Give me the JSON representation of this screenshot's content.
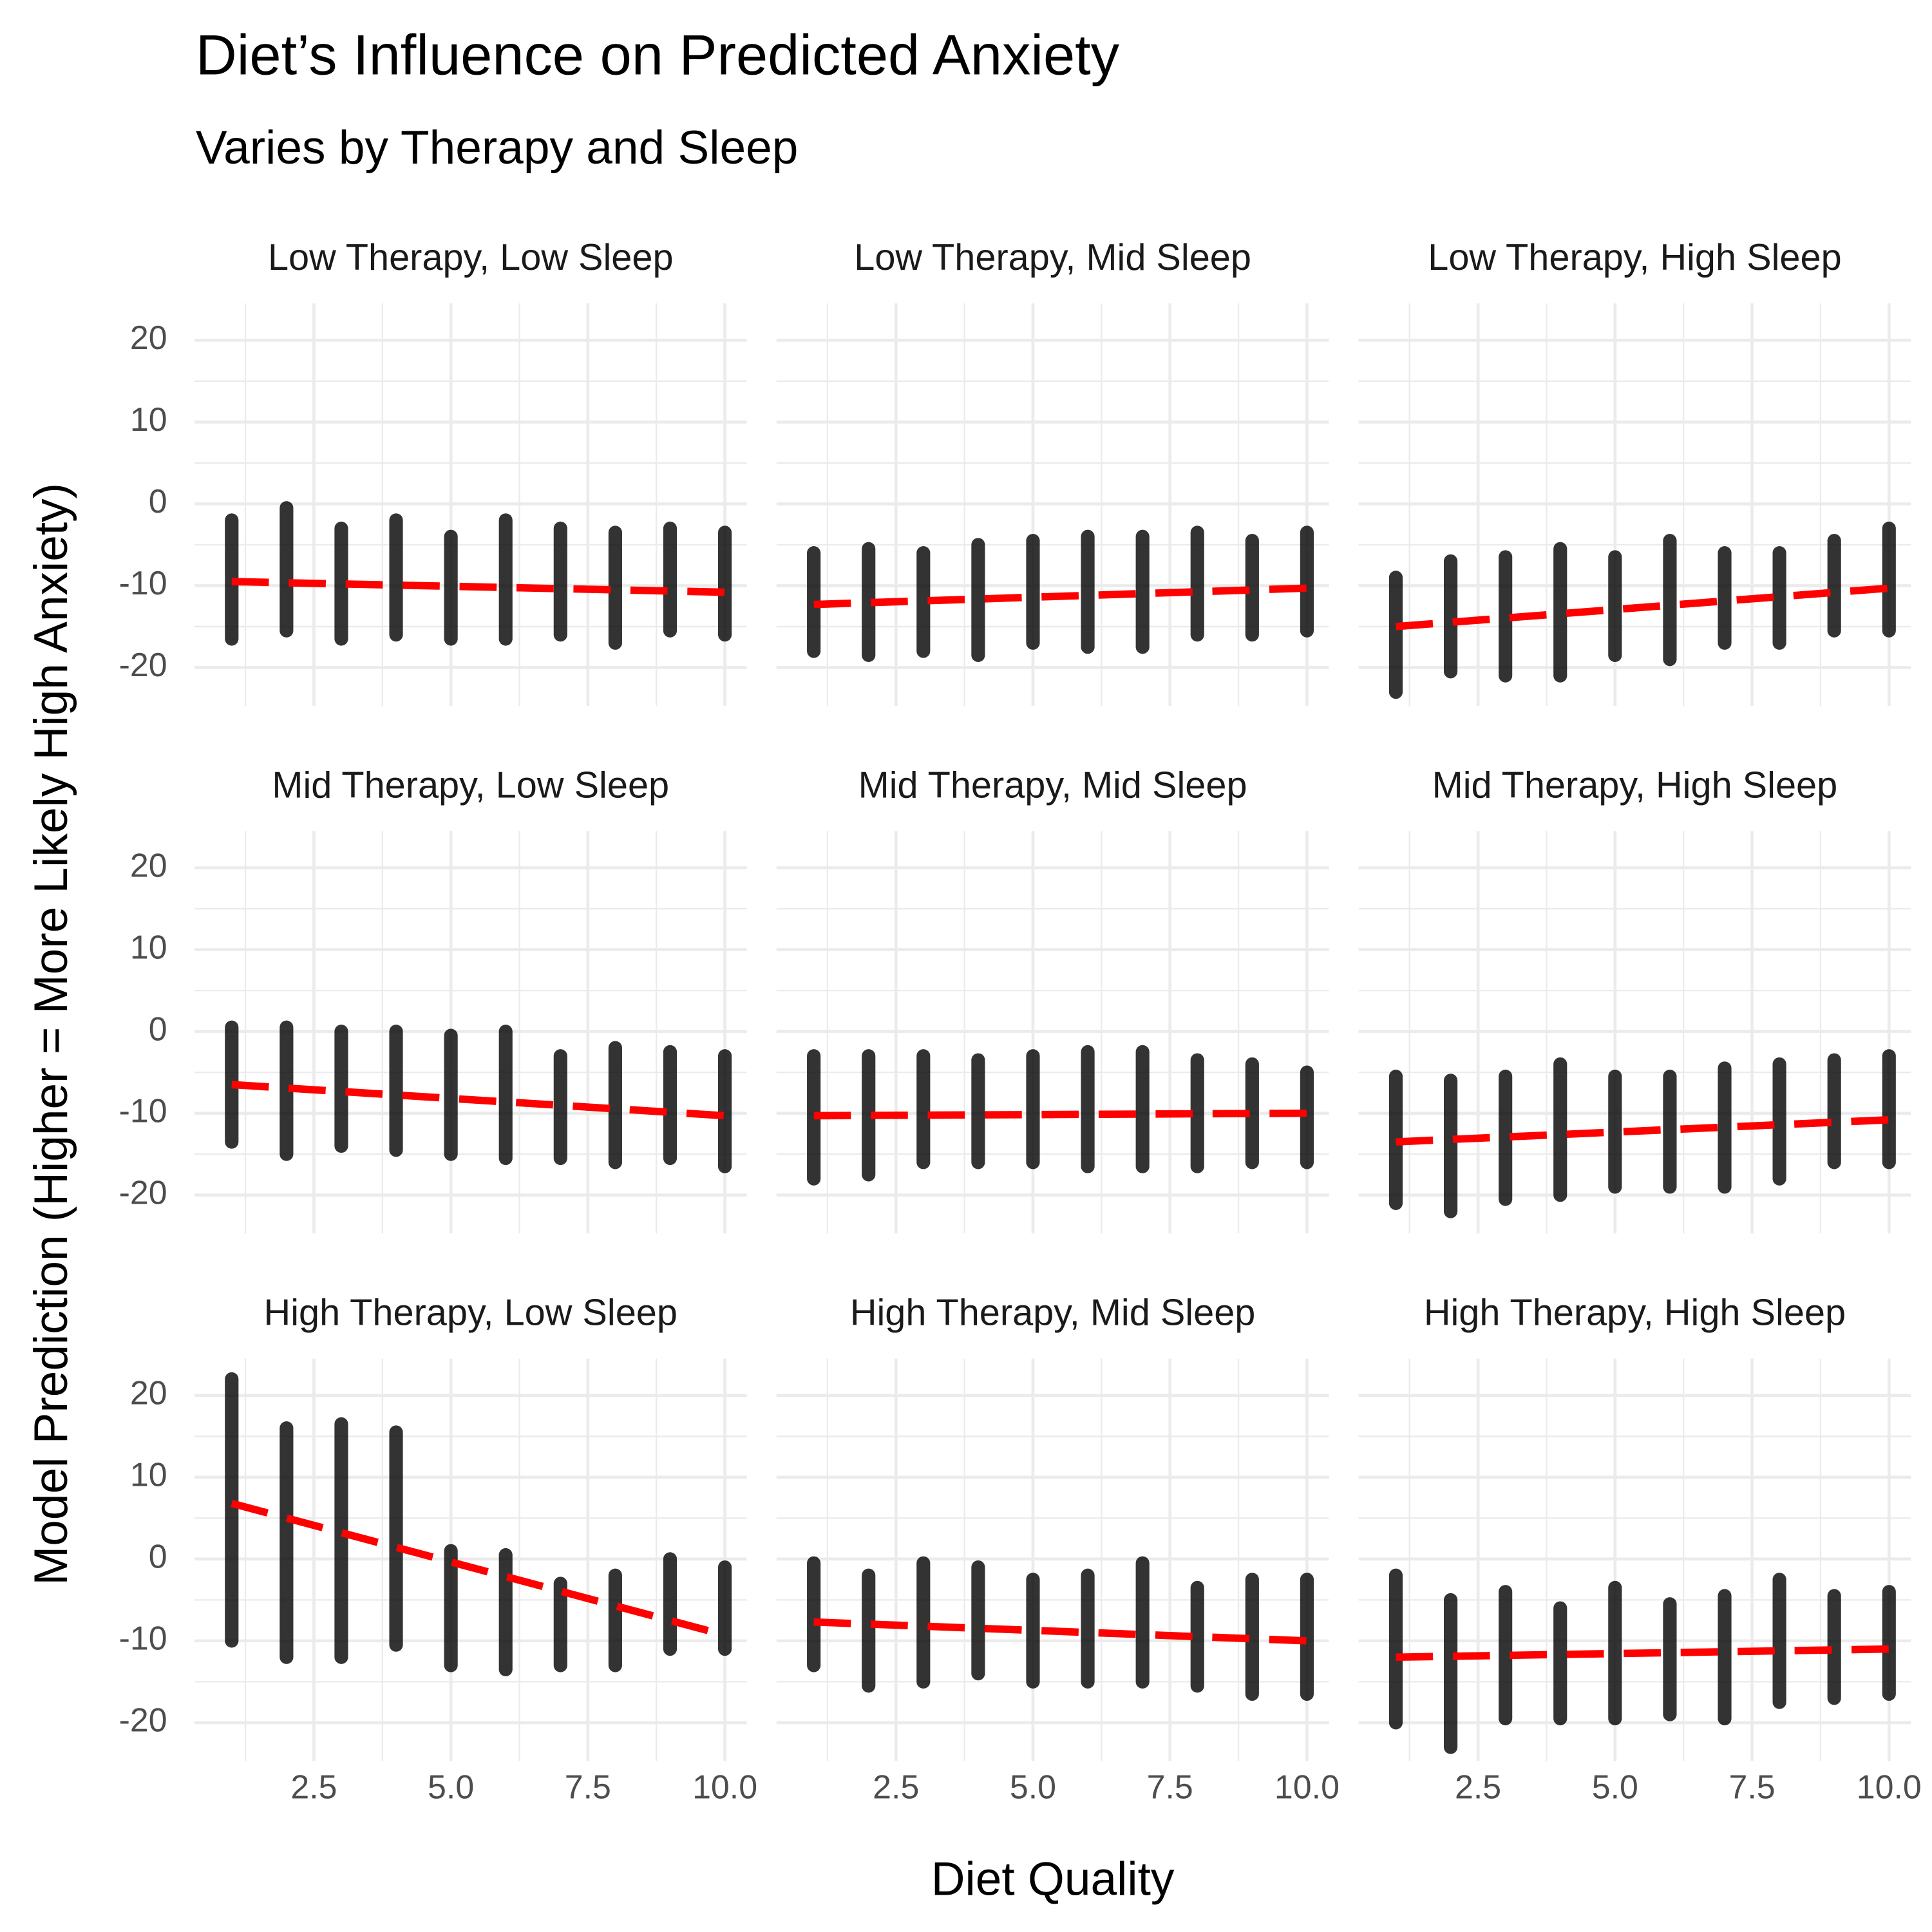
{
  "title": "Diet’s Influence on Predicted Anxiety",
  "subtitle": "Varies by Therapy and Sleep",
  "x_label": "Diet Quality",
  "y_label": "Model Prediction (Higher = More Likely High Anxiety)",
  "axes": {
    "xlim": [
      0.32,
      10.4
    ],
    "ylim": [
      -24.7,
      24.5
    ],
    "xticks": [
      2.5,
      {
        "value": 5,
        "label": "5.0"
      },
      7.5,
      {
        "value": 10,
        "label": "10.0"
      }
    ],
    "yticks": [
      -20,
      -10,
      0,
      10,
      20
    ],
    "grid": true
  },
  "chart_data": [
    {
      "type": "scatter",
      "title": "Low Therapy, Low Sleep",
      "color": "#000000",
      "x": [
        1,
        2,
        3,
        4,
        5,
        6,
        7,
        8,
        9,
        10
      ],
      "low": [
        -16.5,
        -15.5,
        -16.5,
        -16,
        -16.5,
        -16.5,
        -16,
        -17,
        -15.5,
        -16
      ],
      "high": [
        -2,
        -0.5,
        -3,
        -2,
        -4,
        -2,
        -3,
        -3.5,
        -3,
        -3.5
      ],
      "trend": {
        "x": [
          1,
          10
        ],
        "values": [
          -9.5,
          -10.8
        ],
        "color": "#ff0000"
      }
    },
    {
      "type": "scatter",
      "title": "Low Therapy, Mid Sleep",
      "color": "#000000",
      "x": [
        1,
        2,
        3,
        4,
        5,
        6,
        7,
        8,
        9,
        10
      ],
      "low": [
        -18,
        -18.5,
        -18,
        -18.5,
        -17,
        -17.5,
        -17.5,
        -16,
        -16,
        -15.5
      ],
      "high": [
        -6,
        -5.5,
        -6,
        -5,
        -4.5,
        -4,
        -4,
        -3.5,
        -4.5,
        -3.5
      ],
      "trend": {
        "x": [
          1,
          10
        ],
        "values": [
          -12.3,
          -10.3
        ],
        "color": "#ff0000"
      }
    },
    {
      "type": "scatter",
      "title": "Low Therapy, High Sleep",
      "color": "#000000",
      "x": [
        1,
        2,
        3,
        4,
        5,
        6,
        7,
        8,
        9,
        10
      ],
      "low": [
        -23,
        -20.5,
        -21,
        -21,
        -18.5,
        -19,
        -17,
        -17,
        -15.5,
        -15.5
      ],
      "high": [
        -9,
        -7,
        -6.5,
        -5.5,
        -6.5,
        -4.5,
        -6,
        -6,
        -4.5,
        -3
      ],
      "trend": {
        "x": [
          1,
          10
        ],
        "values": [
          -15,
          -10.3
        ],
        "color": "#ff0000"
      }
    },
    {
      "type": "scatter",
      "title": "Mid Therapy, Low Sleep",
      "color": "#000000",
      "x": [
        1,
        2,
        3,
        4,
        5,
        6,
        7,
        8,
        9,
        10
      ],
      "low": [
        -13.5,
        -15,
        -14,
        -14.5,
        -15,
        -15.5,
        -15.5,
        -16,
        -15.5,
        -16.5
      ],
      "high": [
        0.5,
        0.5,
        0,
        0,
        -0.5,
        0,
        -3,
        -2,
        -2.5,
        -3
      ],
      "trend": {
        "x": [
          1,
          10
        ],
        "values": [
          -6.5,
          -10.3
        ],
        "color": "#ff0000"
      }
    },
    {
      "type": "scatter",
      "title": "Mid Therapy, Mid Sleep",
      "color": "#000000",
      "x": [
        1,
        2,
        3,
        4,
        5,
        6,
        7,
        8,
        9,
        10
      ],
      "low": [
        -18,
        -17.5,
        -16,
        -16,
        -16,
        -16.5,
        -16.5,
        -16.5,
        -16,
        -16
      ],
      "high": [
        -3,
        -3,
        -3,
        -3.5,
        -3,
        -2.5,
        -2.5,
        -3.5,
        -4,
        -5
      ],
      "trend": {
        "x": [
          1,
          10
        ],
        "values": [
          -10.3,
          -10
        ],
        "color": "#ff0000"
      }
    },
    {
      "type": "scatter",
      "title": "Mid Therapy, High Sleep",
      "color": "#000000",
      "x": [
        1,
        2,
        3,
        4,
        5,
        6,
        7,
        8,
        9,
        10
      ],
      "low": [
        -21,
        -22,
        -20.5,
        -20,
        -19,
        -19,
        -19,
        -18,
        -16,
        -16
      ],
      "high": [
        -5.5,
        -6,
        -5.5,
        -4,
        -5.5,
        -5.5,
        -4.5,
        -4,
        -3.5,
        -3
      ],
      "trend": {
        "x": [
          1,
          10
        ],
        "values": [
          -13.5,
          -10.8
        ],
        "color": "#ff0000"
      }
    },
    {
      "type": "scatter",
      "title": "High Therapy, Low Sleep",
      "color": "#000000",
      "x": [
        1,
        2,
        3,
        4,
        5,
        6,
        7,
        8,
        9,
        10
      ],
      "low": [
        -10,
        -12,
        -12,
        -10.5,
        -13,
        -13.5,
        -13,
        -13,
        -11,
        -11
      ],
      "high": [
        22,
        16,
        16.5,
        15.5,
        1,
        0.5,
        -3,
        -2,
        0,
        -1
      ],
      "trend": {
        "x": [
          1,
          10
        ],
        "values": [
          6.8,
          -9.3
        ],
        "color": "#ff0000"
      }
    },
    {
      "type": "scatter",
      "title": "High Therapy, Mid Sleep",
      "color": "#000000",
      "x": [
        1,
        2,
        3,
        4,
        5,
        6,
        7,
        8,
        9,
        10
      ],
      "low": [
        -13,
        -15.5,
        -15,
        -14,
        -15,
        -15,
        -15,
        -15.5,
        -16.5,
        -16.5
      ],
      "high": [
        -0.5,
        -2,
        -0.5,
        -1,
        -2.5,
        -2,
        -0.5,
        -3.5,
        -2.5,
        -2.5
      ],
      "trend": {
        "x": [
          1,
          10
        ],
        "values": [
          -7.7,
          -10
        ],
        "color": "#ff0000"
      }
    },
    {
      "type": "scatter",
      "title": "High Therapy, High Sleep",
      "color": "#000000",
      "x": [
        1,
        2,
        3,
        4,
        5,
        6,
        7,
        8,
        9,
        10
      ],
      "low": [
        -20,
        -23,
        -19.5,
        -19.5,
        -19.5,
        -19,
        -19.5,
        -17.5,
        -17,
        -16.5
      ],
      "high": [
        -2,
        -5,
        -4,
        -6,
        -3.5,
        -5.5,
        -4.5,
        -2.5,
        -4.5,
        -4
      ],
      "trend": {
        "x": [
          1,
          10
        ],
        "values": [
          -12,
          -11
        ],
        "color": "#ff0000"
      }
    }
  ]
}
